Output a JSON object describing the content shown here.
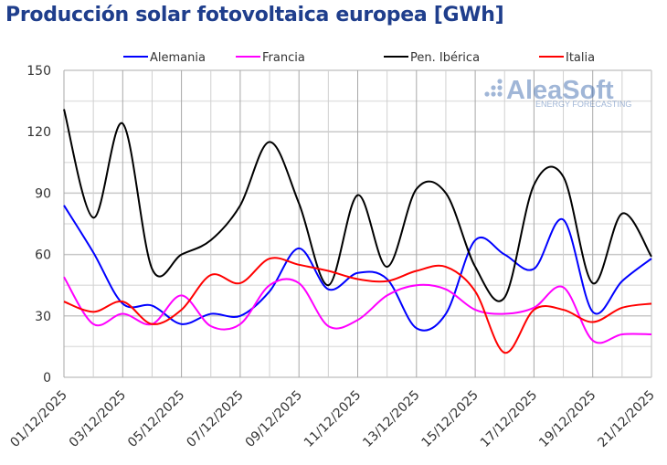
{
  "chart_data": {
    "type": "line",
    "title": "Producción solar fotovoltaica europea [GWh]",
    "categories": [
      "01/12/2025",
      "02/12/2025",
      "03/12/2025",
      "04/12/2025",
      "05/12/2025",
      "06/12/2025",
      "07/12/2025",
      "08/12/2025",
      "09/12/2025",
      "10/12/2025",
      "11/12/2025",
      "12/12/2025",
      "13/12/2025",
      "14/12/2025",
      "15/12/2025",
      "16/12/2025",
      "17/12/2025",
      "18/12/2025",
      "19/12/2025",
      "20/12/2025",
      "21/12/2025"
    ],
    "xtick_labels": [
      "01/12/2025",
      "03/12/2025",
      "05/12/2025",
      "07/12/2025",
      "09/12/2025",
      "11/12/2025",
      "13/12/2025",
      "15/12/2025",
      "17/12/2025",
      "19/12/2025",
      "21/12/2025"
    ],
    "ylim": [
      0,
      150
    ],
    "yticks": [
      0,
      30,
      60,
      90,
      120,
      150
    ],
    "grid": true,
    "legend_position": "top",
    "series": [
      {
        "name": "Alemania",
        "color": "#0000ff",
        "values": [
          84,
          61,
          36,
          35,
          26,
          31,
          30,
          42,
          63,
          43,
          51,
          48,
          24,
          31,
          67,
          60,
          53,
          77,
          32,
          47,
          58
        ]
      },
      {
        "name": "Francia",
        "color": "#ff00ff",
        "values": [
          49,
          26,
          31,
          26,
          40,
          25,
          26,
          45,
          46,
          25,
          28,
          40,
          45,
          43,
          33,
          31,
          34,
          44,
          18,
          21,
          21
        ]
      },
      {
        "name": "Pen. Ibérica",
        "color": "#000000",
        "values": [
          131,
          78,
          124,
          53,
          60,
          67,
          84,
          115,
          85,
          45,
          89,
          54,
          92,
          90,
          54,
          39,
          94,
          98,
          46,
          80,
          59
        ]
      },
      {
        "name": "Italia",
        "color": "#ff0000",
        "values": [
          37,
          32,
          37,
          26,
          33,
          50,
          46,
          58,
          55,
          52,
          48,
          47,
          52,
          54,
          42,
          12,
          33,
          33,
          27,
          34,
          36
        ]
      }
    ]
  },
  "watermark": {
    "brand": "AleaSoft",
    "tagline": "ENERGY FORECASTING"
  }
}
